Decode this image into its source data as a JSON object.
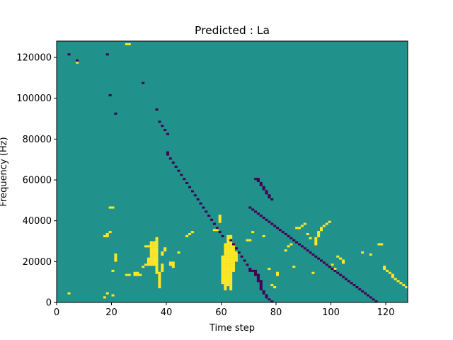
{
  "chart_data": {
    "type": "heatmap",
    "title": "Predicted : La",
    "xlabel": "Time step",
    "ylabel": "Frequency (Hz)",
    "xlim": [
      0,
      128
    ],
    "ylim": [
      0,
      128000
    ],
    "x_ticks": [
      0,
      20,
      40,
      60,
      80,
      100,
      120
    ],
    "x_tick_labels": [
      "0",
      "20",
      "40",
      "60",
      "80",
      "100",
      "120"
    ],
    "y_ticks": [
      0,
      20000,
      40000,
      60000,
      80000,
      100000,
      120000
    ],
    "y_tick_labels": [
      "0",
      "20000",
      "40000",
      "60000",
      "80000",
      "100000",
      "120000"
    ],
    "colors": {
      "background": "#21918c",
      "high": "#fde725",
      "low": "#440154"
    },
    "values_legend": {
      "background": 0,
      "high": 1,
      "low": -1
    },
    "cells_high": [
      [
        4,
        4
      ],
      [
        17,
        2
      ],
      [
        18,
        4
      ],
      [
        20,
        3
      ],
      [
        25,
        126
      ],
      [
        26,
        126
      ],
      [
        7,
        117
      ],
      [
        17,
        32
      ],
      [
        18,
        32
      ],
      [
        18,
        33
      ],
      [
        19,
        34
      ],
      [
        19,
        46
      ],
      [
        20,
        46
      ],
      [
        20,
        15
      ],
      [
        21,
        20
      ],
      [
        21,
        21
      ],
      [
        21,
        22
      ],
      [
        21,
        23
      ],
      [
        25,
        13
      ],
      [
        26,
        13
      ],
      [
        28,
        13
      ],
      [
        28,
        14
      ],
      [
        29,
        13
      ],
      [
        29,
        14
      ],
      [
        30,
        13
      ],
      [
        31,
        17
      ],
      [
        32,
        18
      ],
      [
        32,
        27
      ],
      [
        33,
        18
      ],
      [
        33,
        19
      ],
      [
        33,
        20
      ],
      [
        33,
        21
      ],
      [
        33,
        27
      ],
      [
        34,
        18
      ],
      [
        34,
        19
      ],
      [
        34,
        20
      ],
      [
        34,
        21
      ],
      [
        34,
        22
      ],
      [
        34,
        23
      ],
      [
        34,
        24
      ],
      [
        34,
        25
      ],
      [
        34,
        26
      ],
      [
        34,
        27
      ],
      [
        34,
        28
      ],
      [
        34,
        29
      ],
      [
        35,
        18
      ],
      [
        35,
        19
      ],
      [
        35,
        20
      ],
      [
        35,
        21
      ],
      [
        35,
        22
      ],
      [
        35,
        23
      ],
      [
        35,
        24
      ],
      [
        35,
        25
      ],
      [
        35,
        26
      ],
      [
        35,
        27
      ],
      [
        35,
        28
      ],
      [
        35,
        29
      ],
      [
        36,
        14
      ],
      [
        36,
        15
      ],
      [
        36,
        16
      ],
      [
        36,
        17
      ],
      [
        36,
        18
      ],
      [
        36,
        19
      ],
      [
        36,
        20
      ],
      [
        36,
        21
      ],
      [
        36,
        22
      ],
      [
        36,
        23
      ],
      [
        36,
        24
      ],
      [
        36,
        25
      ],
      [
        36,
        26
      ],
      [
        36,
        27
      ],
      [
        36,
        28
      ],
      [
        36,
        29
      ],
      [
        36,
        30
      ],
      [
        36,
        31
      ],
      [
        37,
        7
      ],
      [
        37,
        8
      ],
      [
        37,
        9
      ],
      [
        37,
        10
      ],
      [
        37,
        11
      ],
      [
        37,
        12
      ],
      [
        37,
        13
      ],
      [
        37,
        14
      ],
      [
        38,
        15
      ],
      [
        38,
        16
      ],
      [
        38,
        17
      ],
      [
        38,
        18
      ],
      [
        38,
        23
      ],
      [
        38,
        24
      ],
      [
        39,
        25
      ],
      [
        39,
        26
      ],
      [
        41,
        18
      ],
      [
        41,
        19
      ],
      [
        42,
        17
      ],
      [
        42,
        18
      ],
      [
        42,
        19
      ],
      [
        44,
        24
      ],
      [
        47,
        32
      ],
      [
        48,
        33
      ],
      [
        49,
        34
      ],
      [
        57,
        35
      ],
      [
        58,
        35
      ],
      [
        58,
        36
      ],
      [
        59,
        39
      ],
      [
        59,
        40
      ],
      [
        59,
        41
      ],
      [
        59,
        42
      ],
      [
        60,
        9
      ],
      [
        60,
        10
      ],
      [
        60,
        11
      ],
      [
        60,
        12
      ],
      [
        60,
        13
      ],
      [
        60,
        14
      ],
      [
        60,
        15
      ],
      [
        60,
        16
      ],
      [
        60,
        17
      ],
      [
        60,
        18
      ],
      [
        60,
        19
      ],
      [
        60,
        20
      ],
      [
        60,
        21
      ],
      [
        60,
        22
      ],
      [
        61,
        6
      ],
      [
        61,
        7
      ],
      [
        61,
        8
      ],
      [
        61,
        9
      ],
      [
        61,
        10
      ],
      [
        61,
        11
      ],
      [
        61,
        12
      ],
      [
        61,
        13
      ],
      [
        61,
        14
      ],
      [
        61,
        15
      ],
      [
        61,
        16
      ],
      [
        61,
        17
      ],
      [
        61,
        18
      ],
      [
        61,
        19
      ],
      [
        61,
        20
      ],
      [
        61,
        21
      ],
      [
        61,
        22
      ],
      [
        61,
        23
      ],
      [
        61,
        24
      ],
      [
        61,
        25
      ],
      [
        61,
        26
      ],
      [
        61,
        27
      ],
      [
        61,
        28
      ],
      [
        62,
        8
      ],
      [
        62,
        9
      ],
      [
        62,
        10
      ],
      [
        62,
        11
      ],
      [
        62,
        12
      ],
      [
        62,
        13
      ],
      [
        62,
        14
      ],
      [
        62,
        15
      ],
      [
        62,
        16
      ],
      [
        62,
        17
      ],
      [
        62,
        18
      ],
      [
        62,
        19
      ],
      [
        62,
        20
      ],
      [
        62,
        21
      ],
      [
        62,
        22
      ],
      [
        62,
        23
      ],
      [
        62,
        24
      ],
      [
        62,
        25
      ],
      [
        62,
        26
      ],
      [
        62,
        27
      ],
      [
        62,
        28
      ],
      [
        62,
        29
      ],
      [
        62,
        30
      ],
      [
        62,
        31
      ],
      [
        62,
        32
      ],
      [
        63,
        6
      ],
      [
        63,
        7
      ],
      [
        63,
        8
      ],
      [
        63,
        9
      ],
      [
        63,
        10
      ],
      [
        63,
        11
      ],
      [
        63,
        12
      ],
      [
        63,
        13
      ],
      [
        63,
        14
      ],
      [
        63,
        15
      ],
      [
        63,
        16
      ],
      [
        63,
        17
      ],
      [
        63,
        18
      ],
      [
        63,
        19
      ],
      [
        63,
        20
      ],
      [
        63,
        21
      ],
      [
        63,
        22
      ],
      [
        63,
        23
      ],
      [
        63,
        24
      ],
      [
        63,
        25
      ],
      [
        63,
        26
      ],
      [
        63,
        27
      ],
      [
        63,
        28
      ],
      [
        63,
        29
      ],
      [
        63,
        30
      ],
      [
        63,
        31
      ],
      [
        63,
        32
      ],
      [
        64,
        15
      ],
      [
        64,
        16
      ],
      [
        64,
        17
      ],
      [
        64,
        18
      ],
      [
        64,
        19
      ],
      [
        64,
        20
      ],
      [
        64,
        21
      ],
      [
        64,
        22
      ],
      [
        64,
        23
      ],
      [
        64,
        24
      ],
      [
        64,
        25
      ],
      [
        64,
        26
      ],
      [
        64,
        27
      ],
      [
        64,
        28
      ],
      [
        65,
        20
      ],
      [
        65,
        21
      ],
      [
        65,
        22
      ],
      [
        65,
        23
      ],
      [
        65,
        24
      ],
      [
        69,
        30
      ],
      [
        70,
        30
      ],
      [
        71,
        34
      ],
      [
        75,
        32
      ],
      [
        77,
        16
      ],
      [
        78,
        8
      ],
      [
        79,
        7
      ],
      [
        80,
        13
      ],
      [
        80,
        14
      ],
      [
        83,
        25
      ],
      [
        84,
        27
      ],
      [
        85,
        28
      ],
      [
        86,
        17
      ],
      [
        87,
        36
      ],
      [
        88,
        36
      ],
      [
        89,
        37
      ],
      [
        90,
        38
      ],
      [
        91,
        33
      ],
      [
        92,
        31
      ],
      [
        93,
        14
      ],
      [
        94,
        28
      ],
      [
        94,
        29
      ],
      [
        94,
        30
      ],
      [
        94,
        31
      ],
      [
        95,
        32
      ],
      [
        95,
        33
      ],
      [
        95,
        34
      ],
      [
        96,
        35
      ],
      [
        96,
        36
      ],
      [
        97,
        37
      ],
      [
        98,
        38
      ],
      [
        99,
        39
      ],
      [
        100,
        18
      ],
      [
        101,
        16
      ],
      [
        102,
        22
      ],
      [
        103,
        21
      ],
      [
        104,
        20
      ],
      [
        104,
        19
      ],
      [
        111,
        24
      ],
      [
        114,
        23
      ],
      [
        117,
        28
      ],
      [
        118,
        28
      ],
      [
        119,
        16
      ],
      [
        119,
        17
      ],
      [
        120,
        15
      ],
      [
        121,
        14
      ],
      [
        122,
        13
      ],
      [
        122,
        12
      ],
      [
        123,
        11
      ],
      [
        124,
        10
      ],
      [
        125,
        9
      ],
      [
        126,
        8
      ],
      [
        127,
        7
      ]
    ],
    "cells_low": [
      [
        4,
        121
      ],
      [
        7,
        118
      ],
      [
        18,
        121
      ],
      [
        19,
        101
      ],
      [
        21,
        92
      ],
      [
        31,
        107
      ],
      [
        36,
        94
      ],
      [
        37,
        88
      ],
      [
        38,
        86
      ],
      [
        39,
        84
      ],
      [
        40,
        82
      ],
      [
        40,
        73
      ],
      [
        40,
        72
      ],
      [
        41,
        70
      ],
      [
        42,
        68
      ],
      [
        43,
        66
      ],
      [
        44,
        64
      ],
      [
        45,
        62
      ],
      [
        46,
        60
      ],
      [
        47,
        58
      ],
      [
        48,
        56
      ],
      [
        49,
        54
      ],
      [
        50,
        52
      ],
      [
        51,
        50
      ],
      [
        52,
        48
      ],
      [
        53,
        46
      ],
      [
        54,
        44
      ],
      [
        55,
        42
      ],
      [
        56,
        40
      ],
      [
        57,
        38
      ],
      [
        58,
        36
      ],
      [
        59,
        34
      ],
      [
        60,
        32
      ],
      [
        63,
        30
      ],
      [
        64,
        28
      ],
      [
        65,
        26
      ],
      [
        66,
        24
      ],
      [
        67,
        22
      ],
      [
        68,
        20
      ],
      [
        69,
        18
      ],
      [
        70,
        16
      ],
      [
        70,
        15
      ],
      [
        71,
        15
      ],
      [
        72,
        15
      ],
      [
        72,
        14
      ],
      [
        72,
        13
      ],
      [
        73,
        13
      ],
      [
        73,
        12
      ],
      [
        73,
        11
      ],
      [
        73,
        10
      ],
      [
        74,
        10
      ],
      [
        74,
        9
      ],
      [
        74,
        8
      ],
      [
        74,
        7
      ],
      [
        74,
        6
      ],
      [
        75,
        5
      ],
      [
        75,
        4
      ],
      [
        76,
        3
      ],
      [
        76,
        2
      ],
      [
        77,
        1
      ],
      [
        78,
        0
      ],
      [
        72,
        60
      ],
      [
        73,
        60
      ],
      [
        73,
        59
      ],
      [
        74,
        58
      ],
      [
        74,
        57
      ],
      [
        75,
        56
      ],
      [
        75,
        55
      ],
      [
        76,
        54
      ],
      [
        76,
        53
      ],
      [
        77,
        52
      ],
      [
        77,
        51
      ],
      [
        78,
        50
      ],
      [
        70,
        46
      ],
      [
        71,
        45
      ],
      [
        72,
        44
      ],
      [
        73,
        43
      ],
      [
        74,
        42
      ],
      [
        75,
        41
      ],
      [
        76,
        40
      ],
      [
        77,
        39
      ],
      [
        78,
        38
      ],
      [
        79,
        37
      ],
      [
        80,
        36
      ],
      [
        81,
        35
      ],
      [
        82,
        34
      ],
      [
        83,
        33
      ],
      [
        84,
        32
      ],
      [
        85,
        31
      ],
      [
        86,
        30
      ],
      [
        87,
        29
      ],
      [
        88,
        28
      ],
      [
        89,
        27
      ],
      [
        90,
        26
      ],
      [
        91,
        25
      ],
      [
        92,
        24
      ],
      [
        93,
        23
      ],
      [
        94,
        22
      ],
      [
        95,
        21
      ],
      [
        96,
        20
      ],
      [
        97,
        19
      ],
      [
        98,
        18
      ],
      [
        99,
        17
      ],
      [
        100,
        16
      ],
      [
        101,
        15
      ],
      [
        102,
        14
      ],
      [
        103,
        13
      ],
      [
        104,
        12
      ],
      [
        105,
        11
      ],
      [
        106,
        10
      ],
      [
        107,
        9
      ],
      [
        108,
        8
      ],
      [
        109,
        7
      ],
      [
        110,
        6
      ],
      [
        111,
        5
      ],
      [
        112,
        4
      ],
      [
        113,
        3
      ],
      [
        114,
        2
      ],
      [
        115,
        1
      ],
      [
        116,
        0
      ]
    ]
  }
}
